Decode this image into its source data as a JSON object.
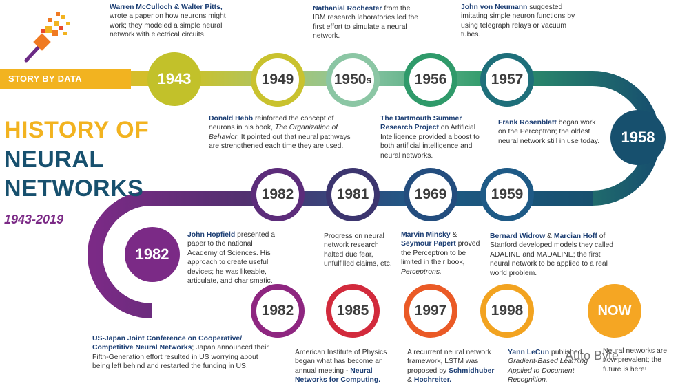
{
  "banner": "STORY BY DATA",
  "title": {
    "line1": "HISTORY OF",
    "line2": "NEURAL",
    "line3": "NETWORKS",
    "years": "1943-2019"
  },
  "watermark": "Auto Byte",
  "nodes": {
    "n1943": "1943",
    "n1949": "1949",
    "n1950": "1950",
    "n1950s": "s",
    "n1956": "1956",
    "n1957": "1957",
    "n1958": "1958",
    "n1959": "1959",
    "n1969": "1969",
    "n1981": "1981",
    "n1982a": "1982",
    "n1982b": "1982",
    "n1982c": "1982",
    "n1985": "1985",
    "n1997": "1997",
    "n1998": "1998",
    "now": "NOW"
  },
  "notes": {
    "mcculloch": {
      "names": "Warren McCulloch & Walter Pitts,",
      "text": "wrote a paper on how neurons might work; they modeled a simple neural network with electrical circuits."
    },
    "rochester": {
      "name": "Nathanial Rochester",
      "text": " from the IBM research laboratories led the first effort to simulate a neural network."
    },
    "neumann": {
      "name": "John von Neumann",
      "text": " suggested imitating simple neuron functions by using telegraph relays or vacuum tubes."
    },
    "hebb": {
      "name": "Donald Hebb",
      "text1": " reinforced the concept of neurons in his book, ",
      "book": "The Organization of Behavior",
      "text2": ". It pointed out that neural pathways are strengthened each time they are used."
    },
    "dartmouth": {
      "name": "The Dartmouth Summer Research Project",
      "text": " on Artificial Intelligence provided a boost to both artificial intelligence and neural networks."
    },
    "rosenblatt": {
      "name": "Frank Rosenblatt",
      "text": " began work on the Perceptron; the oldest neural network still in use today."
    },
    "hopfield": {
      "name": "John Hopfield",
      "text": " presented a paper to the national Academy of Sciences. His approach to create useful devices; he was likeable, articulate, and charismatic."
    },
    "progress": {
      "text": "Progress on neural network research halted due fear, unfulfilled claims, etc."
    },
    "minsky": {
      "name1": "Marvin Minsky",
      "amp": " & ",
      "name2": "Seymour Papert",
      "text": " proved the Perceptron to be limited in their book, ",
      "book": "Perceptrons."
    },
    "widrow": {
      "name1": "Bernard Widrow",
      "amp": " & ",
      "name2": "Marcian Hoff",
      "text": " of Stanford developed models they called ADALINE and MADALINE; the first neural network to be applied to a real world problem."
    },
    "usjapan": {
      "name": "US-Japan Joint Conference on Cooperative/ Competitive Neural Networks",
      "text": "; Japan announced their Fifth-Generation effort resulted in US worrying about being left behind and restarted the funding in US."
    },
    "aip": {
      "text": "American Institute of Physics began what has become an annual meeting - ",
      "name": "Neural Networks for Computing."
    },
    "lstm": {
      "text": "A recurrent neural network framework, LSTM was proposed by ",
      "name1": "Schmidhuber",
      "amp": " & ",
      "name2": "Hochreiter."
    },
    "lecun": {
      "name": "Yann LeCun",
      "text": " published ",
      "book": "Gradient-Based Learning Applied to Document Recognition."
    },
    "nownote": {
      "text": "Neural networks are now prevalent; the future is here!"
    }
  }
}
